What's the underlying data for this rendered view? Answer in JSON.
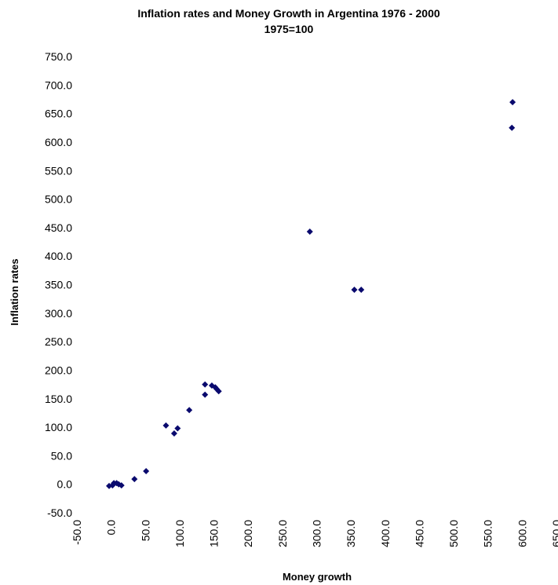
{
  "chart_data": {
    "type": "scatter",
    "title": "Inflation rates and Money Growth in Argentina 1976 - 2000",
    "subtitle": "1975=100",
    "xlabel": "Money growth",
    "ylabel": "Inflation rates",
    "xlim": [
      -50,
      650
    ],
    "ylim": [
      -50,
      750
    ],
    "x_ticks": [
      "-50.0",
      "0.0",
      "50.0",
      "100.0",
      "150.0",
      "200.0",
      "250.0",
      "300.0",
      "350.0",
      "400.0",
      "450.0",
      "500.0",
      "550.0",
      "600.0",
      "650.0"
    ],
    "y_ticks": [
      "-50.0",
      "0.0",
      "50.0",
      "100.0",
      "150.0",
      "200.0",
      "250.0",
      "300.0",
      "350.0",
      "400.0",
      "450.0",
      "500.0",
      "550.0",
      "600.0",
      "650.0",
      "700.0",
      "750.0"
    ],
    "grid": false,
    "marker_color": "#0a0a6e",
    "points": [
      {
        "x": -3,
        "y": -3
      },
      {
        "x": 2,
        "y": -2
      },
      {
        "x": 4,
        "y": 2
      },
      {
        "x": 8,
        "y": 2
      },
      {
        "x": 11,
        "y": 0
      },
      {
        "x": 15,
        "y": -2
      },
      {
        "x": 34,
        "y": 9
      },
      {
        "x": 51,
        "y": 23
      },
      {
        "x": 80,
        "y": 103
      },
      {
        "x": 92,
        "y": 89
      },
      {
        "x": 97,
        "y": 98
      },
      {
        "x": 114,
        "y": 130
      },
      {
        "x": 137,
        "y": 157
      },
      {
        "x": 137,
        "y": 175
      },
      {
        "x": 147,
        "y": 173
      },
      {
        "x": 152,
        "y": 170
      },
      {
        "x": 154,
        "y": 167
      },
      {
        "x": 157,
        "y": 163
      },
      {
        "x": 290,
        "y": 443
      },
      {
        "x": 355,
        "y": 341
      },
      {
        "x": 365,
        "y": 341
      },
      {
        "x": 585,
        "y": 625
      },
      {
        "x": 586,
        "y": 670
      }
    ]
  }
}
